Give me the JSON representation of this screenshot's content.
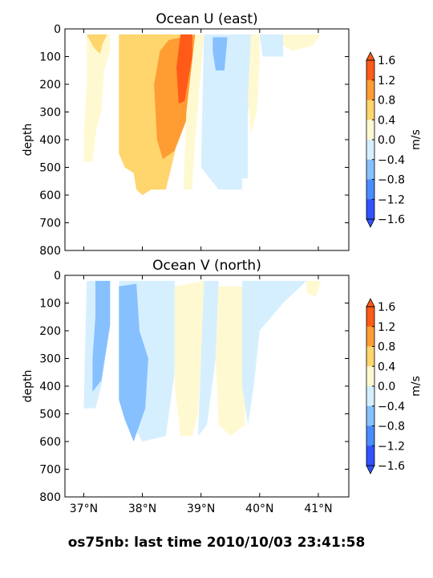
{
  "footer": "os75nb: last time 2010/10/03 23:41:58",
  "chart_data": [
    {
      "type": "contourf",
      "title": "Ocean U (east)",
      "ylabel": "depth",
      "xlim": [
        36.68,
        41.52
      ],
      "ylim": [
        800,
        0
      ],
      "yticks": [
        0,
        100,
        200,
        300,
        400,
        500,
        600,
        700,
        800
      ],
      "xticks": [
        37,
        38,
        39,
        40,
        41
      ],
      "xtick_labels": [],
      "colorbar": {
        "label": "m/s",
        "levels": [
          -1.6,
          -1.2,
          -0.8,
          -0.4,
          0.0,
          0.4,
          0.8,
          1.2,
          1.6
        ],
        "tick_labels": [
          "1.6",
          "1.2",
          "0.8",
          "0.4",
          "0.0",
          "−0.4",
          "−0.8",
          "−1.2",
          "−1.6"
        ],
        "colors": [
          "#3152ff",
          "#4a8cff",
          "#86c0ff",
          "#d6efff",
          "#fff9d2",
          "#ffd56e",
          "#ff9c32",
          "#ff5a18"
        ],
        "extend": "both"
      },
      "regions": [
        {
          "value_range": [
            0.0,
            0.4
          ],
          "polygon": [
            [
              37.05,
              20
            ],
            [
              37.45,
              20
            ],
            [
              37.45,
              80
            ],
            [
              37.35,
              150
            ],
            [
              37.3,
              300
            ],
            [
              37.22,
              360
            ],
            [
              37.15,
              480
            ],
            [
              37.0,
              480
            ],
            [
              37.0,
              380
            ],
            [
              37.05,
              200
            ],
            [
              37.05,
              20
            ]
          ]
        },
        {
          "value_range": [
            0.4,
            0.8
          ],
          "polygon": [
            [
              37.05,
              20
            ],
            [
              37.4,
              20
            ],
            [
              37.32,
              55
            ],
            [
              37.28,
              90
            ],
            [
              37.18,
              70
            ],
            [
              37.1,
              40
            ],
            [
              37.05,
              20
            ]
          ]
        },
        {
          "value_range": [
            0.4,
            0.8
          ],
          "polygon": [
            [
              37.6,
              20
            ],
            [
              38.66,
              20
            ],
            [
              38.7,
              200
            ],
            [
              38.55,
              450
            ],
            [
              38.4,
              580
            ],
            [
              38.15,
              580
            ],
            [
              38.0,
              600
            ],
            [
              37.9,
              580
            ],
            [
              37.85,
              520
            ],
            [
              37.7,
              500
            ],
            [
              37.6,
              450
            ],
            [
              37.6,
              20
            ]
          ]
        },
        {
          "value_range": [
            0.8,
            1.2
          ],
          "polygon": [
            [
              38.45,
              40
            ],
            [
              38.9,
              20
            ],
            [
              38.85,
              150
            ],
            [
              38.75,
              330
            ],
            [
              38.55,
              440
            ],
            [
              38.35,
              470
            ],
            [
              38.25,
              400
            ],
            [
              38.2,
              200
            ],
            [
              38.3,
              80
            ],
            [
              38.45,
              40
            ]
          ]
        },
        {
          "value_range": [
            1.2,
            1.6
          ],
          "polygon": [
            [
              38.65,
              20
            ],
            [
              38.85,
              20
            ],
            [
              38.85,
              100
            ],
            [
              38.72,
              260
            ],
            [
              38.62,
              270
            ],
            [
              38.58,
              140
            ],
            [
              38.65,
              20
            ]
          ]
        },
        {
          "value_range": [
            0.0,
            0.4
          ],
          "polygon": [
            [
              38.9,
              20
            ],
            [
              39.05,
              20
            ],
            [
              39.0,
              150
            ],
            [
              38.9,
              400
            ],
            [
              38.85,
              580
            ],
            [
              38.7,
              580
            ],
            [
              38.75,
              300
            ],
            [
              38.9,
              20
            ]
          ]
        },
        {
          "value_range": [
            -0.4,
            0.0
          ],
          "polygon": [
            [
              39.05,
              20
            ],
            [
              39.95,
              20
            ],
            [
              39.8,
              300
            ],
            [
              39.8,
              540
            ],
            [
              39.7,
              540
            ],
            [
              39.7,
              580
            ],
            [
              39.3,
              580
            ],
            [
              39.0,
              500
            ],
            [
              39.05,
              20
            ]
          ]
        },
        {
          "value_range": [
            -0.8,
            -0.4
          ],
          "polygon": [
            [
              39.2,
              30
            ],
            [
              39.45,
              30
            ],
            [
              39.4,
              150
            ],
            [
              39.25,
              150
            ],
            [
              39.2,
              80
            ],
            [
              39.2,
              30
            ]
          ]
        },
        {
          "value_range": [
            0.0,
            0.4
          ],
          "polygon": [
            [
              39.85,
              20
            ],
            [
              40.0,
              20
            ],
            [
              40.0,
              120
            ],
            [
              39.95,
              300
            ],
            [
              39.85,
              380
            ],
            [
              39.8,
              250
            ],
            [
              39.85,
              20
            ]
          ]
        },
        {
          "value_range": [
            -0.4,
            0.0
          ],
          "polygon": [
            [
              40.0,
              20
            ],
            [
              40.4,
              20
            ],
            [
              40.4,
              100
            ],
            [
              40.05,
              100
            ],
            [
              40.0,
              20
            ]
          ]
        },
        {
          "value_range": [
            0.0,
            0.4
          ],
          "polygon": [
            [
              40.4,
              20
            ],
            [
              41.05,
              20
            ],
            [
              40.9,
              60
            ],
            [
              40.55,
              80
            ],
            [
              40.4,
              60
            ],
            [
              40.4,
              20
            ]
          ]
        }
      ]
    },
    {
      "type": "contourf",
      "title": "Ocean V (north)",
      "ylabel": "depth",
      "xlim": [
        36.68,
        41.52
      ],
      "ylim": [
        800,
        0
      ],
      "yticks": [
        0,
        100,
        200,
        300,
        400,
        500,
        600,
        700,
        800
      ],
      "xticks": [
        37,
        38,
        39,
        40,
        41
      ],
      "xtick_labels": [
        "37°N",
        "38°N",
        "39°N",
        "40°N",
        "41°N"
      ],
      "colorbar": {
        "label": "m/s",
        "levels": [
          -1.6,
          -1.2,
          -0.8,
          -0.4,
          0.0,
          0.4,
          0.8,
          1.2,
          1.6
        ],
        "tick_labels": [
          "1.6",
          "1.2",
          "0.8",
          "0.4",
          "0.0",
          "−0.4",
          "−0.8",
          "−1.2",
          "−1.6"
        ],
        "colors": [
          "#3152ff",
          "#4a8cff",
          "#86c0ff",
          "#d6efff",
          "#fff9d2",
          "#ffd56e",
          "#ff9c32",
          "#ff5a18"
        ],
        "extend": "both"
      },
      "regions": [
        {
          "value_range": [
            -0.4,
            0.0
          ],
          "polygon": [
            [
              37.05,
              20
            ],
            [
              37.45,
              20
            ],
            [
              37.45,
              180
            ],
            [
              37.3,
              400
            ],
            [
              37.2,
              480
            ],
            [
              37.0,
              480
            ],
            [
              37.05,
              20
            ]
          ]
        },
        {
          "value_range": [
            -0.8,
            -0.4
          ],
          "polygon": [
            [
              37.2,
              20
            ],
            [
              37.45,
              20
            ],
            [
              37.45,
              180
            ],
            [
              37.3,
              380
            ],
            [
              37.15,
              420
            ],
            [
              37.15,
              300
            ],
            [
              37.2,
              150
            ],
            [
              37.2,
              20
            ]
          ]
        },
        {
          "value_range": [
            -0.4,
            0.0
          ],
          "polygon": [
            [
              37.6,
              20
            ],
            [
              38.55,
              20
            ],
            [
              38.55,
              350
            ],
            [
              38.4,
              580
            ],
            [
              38.0,
              600
            ],
            [
              37.6,
              450
            ],
            [
              37.6,
              20
            ]
          ]
        },
        {
          "value_range": [
            -0.8,
            -0.4
          ],
          "polygon": [
            [
              37.6,
              40
            ],
            [
              37.9,
              30
            ],
            [
              37.95,
              200
            ],
            [
              38.1,
              300
            ],
            [
              38.05,
              480
            ],
            [
              37.85,
              600
            ],
            [
              37.7,
              520
            ],
            [
              37.6,
              450
            ],
            [
              37.6,
              40
            ]
          ]
        },
        {
          "value_range": [
            0.0,
            0.4
          ],
          "polygon": [
            [
              38.55,
              40
            ],
            [
              39.05,
              20
            ],
            [
              39.0,
              300
            ],
            [
              38.95,
              500
            ],
            [
              38.85,
              580
            ],
            [
              38.65,
              580
            ],
            [
              38.55,
              400
            ],
            [
              38.55,
              40
            ]
          ]
        },
        {
          "value_range": [
            -0.4,
            0.0
          ],
          "polygon": [
            [
              39.05,
              20
            ],
            [
              39.3,
              20
            ],
            [
              39.25,
              300
            ],
            [
              39.1,
              540
            ],
            [
              38.95,
              580
            ],
            [
              39.0,
              300
            ],
            [
              39.05,
              20
            ]
          ]
        },
        {
          "value_range": [
            0.0,
            0.4
          ],
          "polygon": [
            [
              39.3,
              40
            ],
            [
              39.7,
              40
            ],
            [
              39.75,
              300
            ],
            [
              39.75,
              540
            ],
            [
              39.5,
              580
            ],
            [
              39.3,
              540
            ],
            [
              39.25,
              300
            ],
            [
              39.3,
              40
            ]
          ]
        },
        {
          "value_range": [
            -0.4,
            0.0
          ],
          "polygon": [
            [
              39.7,
              20
            ],
            [
              40.8,
              20
            ],
            [
              40.4,
              100
            ],
            [
              40.0,
              200
            ],
            [
              39.9,
              400
            ],
            [
              39.8,
              540
            ],
            [
              39.7,
              400
            ],
            [
              39.7,
              20
            ]
          ]
        },
        {
          "value_range": [
            0.0,
            0.4
          ],
          "polygon": [
            [
              40.8,
              20
            ],
            [
              41.05,
              20
            ],
            [
              40.95,
              80
            ],
            [
              40.8,
              60
            ],
            [
              40.8,
              20
            ]
          ]
        }
      ]
    }
  ]
}
